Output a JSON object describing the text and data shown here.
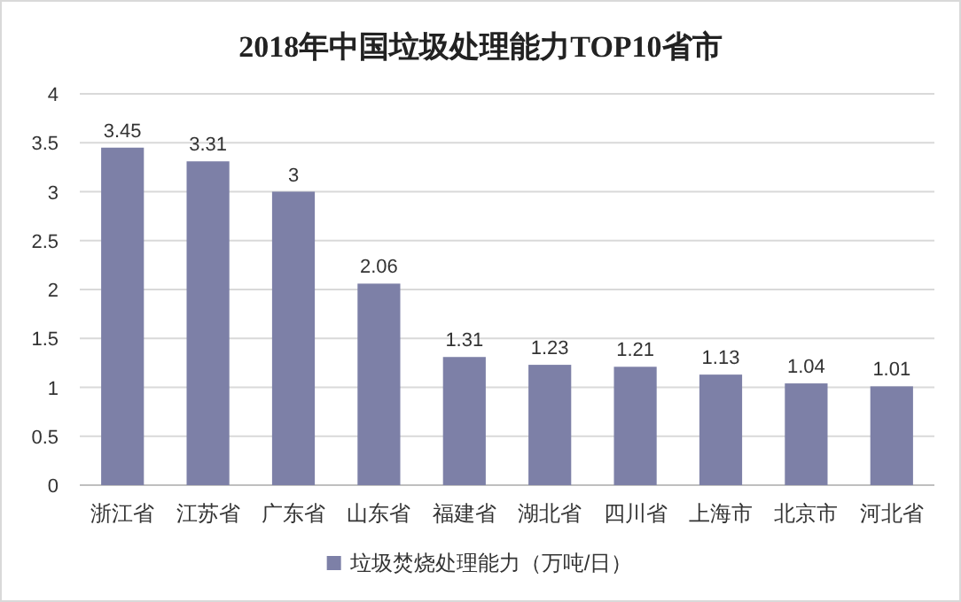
{
  "chart_data": {
    "type": "bar",
    "title": "2018年中国垃圾处理能力TOP10省市",
    "categories": [
      "浙江省",
      "江苏省",
      "广东省",
      "山东省",
      "福建省",
      "湖北省",
      "四川省",
      "上海市",
      "北京市",
      "河北省"
    ],
    "series": [
      {
        "name": "垃圾焚烧处理能力（万吨/日）",
        "color": "#7d80a7",
        "values": [
          3.45,
          3.31,
          3,
          2.06,
          1.31,
          1.23,
          1.21,
          1.13,
          1.04,
          1.01
        ]
      }
    ],
    "ylim": [
      0,
      4
    ],
    "yticks": [
      0,
      0.5,
      1,
      1.5,
      2,
      2.5,
      3,
      3.5,
      4
    ],
    "grid": "y",
    "legend": "bottom",
    "data_labels": true
  }
}
